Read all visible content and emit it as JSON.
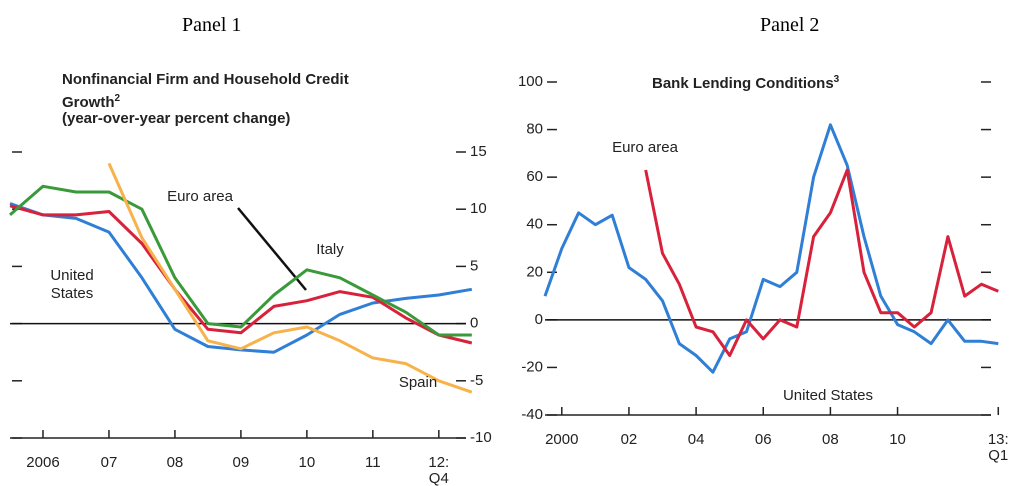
{
  "chart_data": [
    {
      "type": "line",
      "label": "Panel 1",
      "title": "Nonfinancial Firm and Household Credit Growth",
      "title_superscript": "2",
      "subtitle": "(year-over-year percent change)",
      "x": [
        2006,
        2006.5,
        2007,
        2007.5,
        2008,
        2008.5,
        2009,
        2009.5,
        2010,
        2010.5,
        2011,
        2011.5,
        2012,
        2012.5,
        2013
      ],
      "xlim": [
        2006,
        2013.2
      ],
      "xticks": [
        {
          "value": 2006.5,
          "label": "2006"
        },
        {
          "value": 2007.5,
          "label": "07"
        },
        {
          "value": 2008.5,
          "label": "08"
        },
        {
          "value": 2009.5,
          "label": "09"
        },
        {
          "value": 2010.5,
          "label": "10"
        },
        {
          "value": 2011.5,
          "label": "11"
        },
        {
          "value": 2012.5,
          "label": "12:\nQ4"
        }
      ],
      "ylim": [
        -10,
        15
      ],
      "yticks": [
        15,
        10,
        5,
        0,
        -5,
        -10
      ],
      "yaxis_side": "right",
      "grid": false,
      "series": [
        {
          "name": "United States",
          "color": "#2f7fd6",
          "values": [
            10.5,
            9.5,
            9.2,
            8,
            4,
            -0.5,
            -2,
            -2.3,
            -2.5,
            -1,
            0.8,
            1.8,
            2.2,
            2.5,
            3
          ]
        },
        {
          "name": "Euro area",
          "color": "#d8213a",
          "values": [
            10.3,
            9.5,
            9.5,
            9.8,
            7,
            3,
            -0.5,
            -0.8,
            1.5,
            2,
            2.8,
            2.3,
            0.5,
            -1,
            -1.7
          ]
        },
        {
          "name": "Italy",
          "color": "#3a9a3a",
          "values": [
            9.5,
            12,
            11.5,
            11.5,
            10,
            4,
            0,
            -0.3,
            2.5,
            4.7,
            4,
            2.5,
            1,
            -1,
            -1
          ]
        },
        {
          "name": "Spain",
          "color": "#f7b24a",
          "values": [
            null,
            null,
            null,
            14,
            7.5,
            3,
            -1.5,
            -2.2,
            -0.8,
            -0.3,
            -1.5,
            -3,
            -3.5,
            -5,
            -6
          ]
        }
      ]
    },
    {
      "type": "line",
      "label": "Panel 2",
      "title": "Bank Lending Conditions",
      "title_superscript": "3",
      "x": [
        1999.5,
        2000,
        2000.5,
        2001,
        2001.5,
        2002,
        2002.5,
        2003,
        2003.5,
        2004,
        2004.5,
        2005,
        2005.5,
        2006,
        2006.5,
        2007,
        2007.5,
        2008,
        2008.5,
        2009,
        2009.5,
        2010,
        2010.5,
        2011,
        2011.5,
        2012,
        2012.5,
        2013
      ],
      "xlim": [
        1999.5,
        2013.2
      ],
      "xticks": [
        {
          "value": 2000,
          "label": "2000"
        },
        {
          "value": 2002,
          "label": "02"
        },
        {
          "value": 2004,
          "label": "04"
        },
        {
          "value": 2006,
          "label": "06"
        },
        {
          "value": 2008,
          "label": "08"
        },
        {
          "value": 2010,
          "label": "10"
        },
        {
          "value": 2013,
          "label": "13:\nQ1"
        }
      ],
      "ylim": [
        -40,
        100
      ],
      "yticks": [
        100,
        80,
        60,
        40,
        20,
        0,
        -20,
        -40
      ],
      "yaxis_side": "left",
      "grid": false,
      "series": [
        {
          "name": "United States",
          "color": "#2f7fd6",
          "values": [
            10,
            30,
            45,
            40,
            44,
            22,
            17,
            8,
            -10,
            -15,
            -22,
            -8,
            -5,
            17,
            14,
            20,
            60,
            82,
            65,
            35,
            10,
            -2,
            -5,
            -10,
            0,
            -9,
            -9,
            -10
          ]
        },
        {
          "name": "Euro area",
          "color": "#d8213a",
          "values": [
            null,
            null,
            null,
            null,
            null,
            null,
            63,
            28,
            15,
            -3,
            -5,
            -15,
            0,
            -8,
            0,
            -3,
            35,
            45,
            63,
            20,
            3,
            3,
            -3,
            3,
            35,
            10,
            15,
            12
          ]
        }
      ]
    }
  ]
}
